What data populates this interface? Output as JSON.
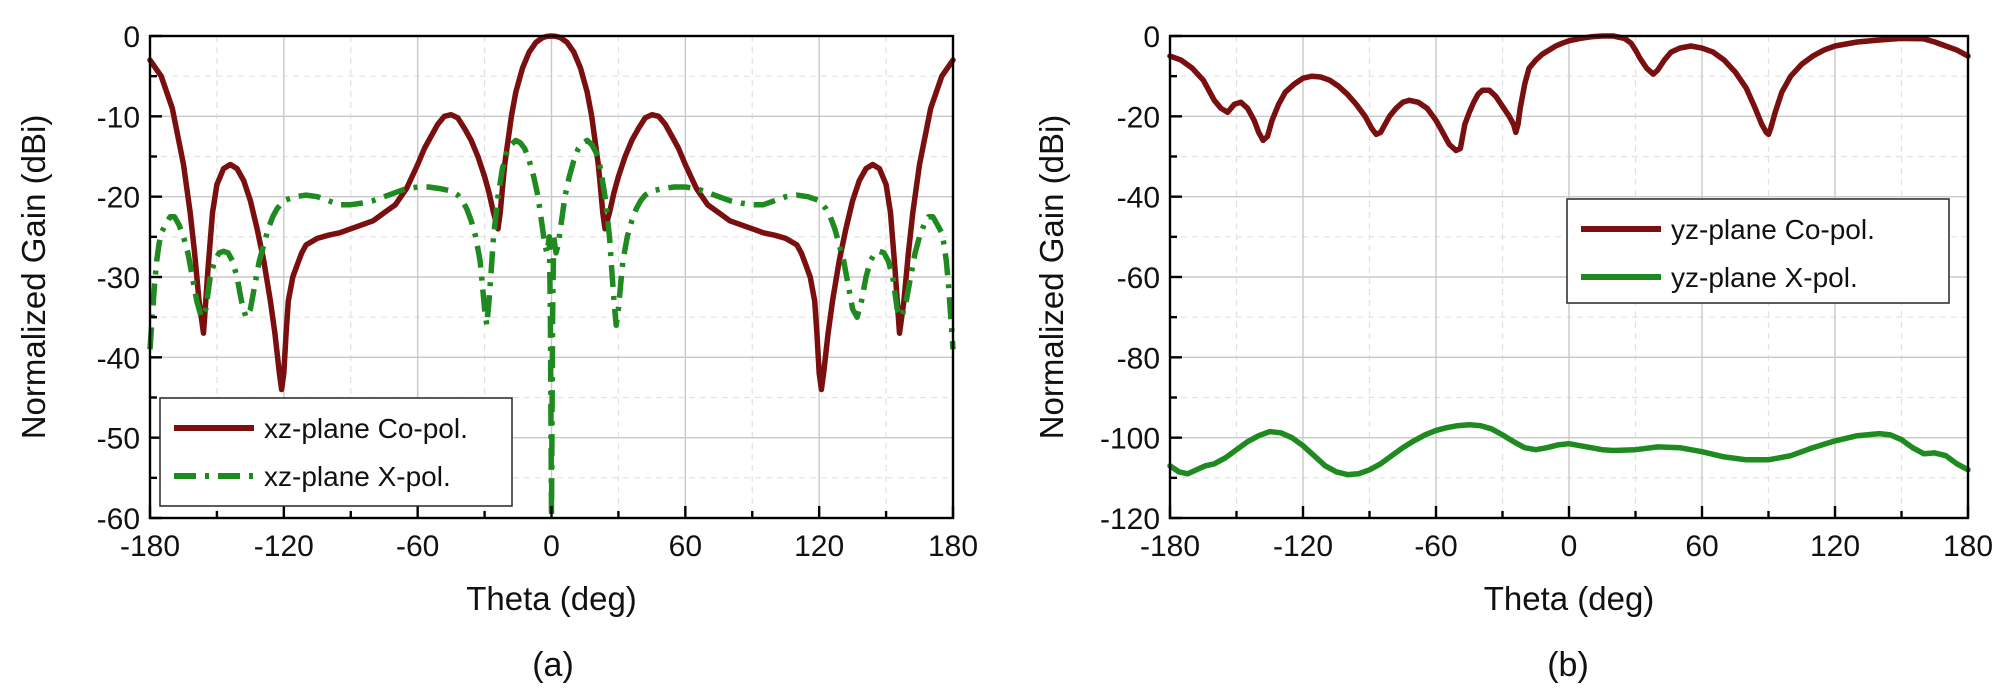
{
  "colors": {
    "co_pol": "#7a0f0f",
    "x_pol": "#1f8a1f",
    "grid": "#c9c9c9"
  },
  "chart_data": [
    {
      "type": "line",
      "caption": "(a)",
      "xlabel": "Theta (deg)",
      "ylabel": "Normalized Gain (dBi)",
      "xlim": [
        -180,
        180
      ],
      "ylim": [
        -60,
        0
      ],
      "xticks": [
        -180,
        -120,
        -60,
        0,
        60,
        120,
        180
      ],
      "yticks": [
        -60,
        -50,
        -40,
        -30,
        -20,
        -10,
        0
      ],
      "grid": true,
      "legend_position": "bottom-left",
      "series": [
        {
          "name": "xz-plane Co-pol.",
          "style": "solid",
          "color": "#7a0f0f",
          "x": [
            -180,
            -175,
            -170,
            -165,
            -162,
            -160,
            -158,
            -156,
            -154,
            -152,
            -150,
            -147,
            -144,
            -141,
            -138,
            -135,
            -132,
            -129,
            -126,
            -124,
            -122,
            -121,
            -120,
            -119,
            -118,
            -116,
            -114,
            -112,
            -110,
            -105,
            -100,
            -95,
            -90,
            -85,
            -80,
            -75,
            -70,
            -65,
            -60,
            -57,
            -54,
            -51,
            -48,
            -45,
            -42,
            -39,
            -36,
            -33,
            -30,
            -28,
            -26,
            -25,
            -24,
            -23,
            -22,
            -21,
            -20,
            -18,
            -16,
            -13,
            -10,
            -7,
            -4,
            -2,
            0,
            2,
            4,
            7,
            10,
            13,
            16,
            18,
            20,
            21,
            22,
            23,
            24,
            25,
            26,
            28,
            30,
            33,
            36,
            39,
            42,
            45,
            48,
            51,
            54,
            57,
            60,
            65,
            70,
            75,
            80,
            85,
            90,
            95,
            100,
            105,
            110,
            112,
            114,
            116,
            118,
            119,
            120,
            121,
            122,
            124,
            126,
            129,
            132,
            135,
            138,
            141,
            144,
            147,
            150,
            152,
            154,
            156,
            158,
            160,
            162,
            165,
            170,
            175,
            180
          ],
          "y": [
            -3,
            -5,
            -9,
            -16,
            -22,
            -27,
            -33,
            -37,
            -29,
            -22,
            -18.5,
            -16.5,
            -16,
            -16.5,
            -18,
            -20.5,
            -24,
            -28,
            -33,
            -37,
            -42,
            -44,
            -42,
            -37,
            -33,
            -30,
            -28.5,
            -27,
            -26,
            -25.2,
            -24.8,
            -24.5,
            -24,
            -23.5,
            -23,
            -22,
            -21,
            -19,
            -16,
            -14,
            -12.5,
            -11,
            -10,
            -9.8,
            -10.2,
            -11.5,
            -13,
            -15,
            -17.5,
            -19.5,
            -22,
            -23,
            -24,
            -22,
            -19,
            -16,
            -14,
            -10,
            -7,
            -4,
            -2,
            -0.8,
            -0.2,
            -0.05,
            0,
            -0.05,
            -0.2,
            -0.8,
            -2,
            -4,
            -7,
            -10,
            -14,
            -16,
            -19,
            -22,
            -24,
            -23,
            -22,
            -19.5,
            -17.5,
            -15,
            -13,
            -11.5,
            -10.2,
            -9.8,
            -10,
            -11,
            -12.5,
            -14,
            -16,
            -19,
            -21,
            -22,
            -23,
            -23.5,
            -24,
            -24.5,
            -24.8,
            -25.2,
            -26,
            -27,
            -28.5,
            -30,
            -33,
            -37,
            -42,
            -44,
            -42,
            -37,
            -33,
            -28,
            -24,
            -20.5,
            -18,
            -16.5,
            -16,
            -16.5,
            -18.5,
            -22,
            -29,
            -37,
            -33,
            -27,
            -22,
            -16,
            -9,
            -5,
            -3
          ]
        },
        {
          "name": "xz-plane X-pol.",
          "style": "dashdot",
          "color": "#1f8a1f",
          "x": [
            -180,
            -179,
            -178,
            -177,
            -176,
            -175,
            -173,
            -171,
            -169,
            -167,
            -165,
            -163,
            -161,
            -159,
            -157,
            -155,
            -153,
            -151,
            -149,
            -147,
            -145,
            -143,
            -141,
            -139,
            -137,
            -135,
            -133,
            -131,
            -129,
            -127,
            -125,
            -123,
            -120,
            -115,
            -110,
            -105,
            -100,
            -95,
            -90,
            -85,
            -80,
            -75,
            -70,
            -65,
            -60,
            -55,
            -50,
            -45,
            -42,
            -40,
            -38,
            -36,
            -34,
            -32,
            -31,
            -30,
            -29,
            -28,
            -27,
            -26,
            -24,
            -22,
            -20,
            -18,
            -16,
            -14,
            -12,
            -10,
            -8,
            -6,
            -5,
            -4,
            -3,
            -2,
            -1,
            -0.5,
            0,
            0.5,
            1,
            2,
            3,
            4,
            5,
            6,
            8,
            10,
            12,
            14,
            16,
            18,
            20,
            22,
            24,
            26,
            27,
            28,
            29,
            30,
            31,
            32,
            34,
            36,
            38,
            40,
            42,
            45,
            50,
            55,
            60,
            65,
            70,
            75,
            80,
            85,
            90,
            95,
            100,
            105,
            110,
            115,
            120,
            123,
            125,
            127,
            129,
            131,
            133,
            135,
            137,
            139,
            141,
            143,
            145,
            147,
            149,
            151,
            153,
            155,
            157,
            159,
            161,
            163,
            165,
            167,
            169,
            171,
            173,
            175,
            176,
            177,
            178,
            179,
            180
          ],
          "y": [
            -39,
            -35,
            -31,
            -28,
            -26,
            -24.5,
            -23.5,
            -22.5,
            -22.5,
            -23.5,
            -25,
            -27,
            -30,
            -33,
            -35,
            -34,
            -30,
            -28,
            -27,
            -26.8,
            -27,
            -28,
            -30,
            -33,
            -35,
            -34,
            -31,
            -28,
            -26,
            -24,
            -22.5,
            -21.5,
            -20.5,
            -20,
            -19.8,
            -20,
            -20.5,
            -21,
            -21,
            -20.8,
            -20.5,
            -20,
            -19.5,
            -19,
            -18.8,
            -18.8,
            -19,
            -19.3,
            -19.8,
            -20.5,
            -21.5,
            -23,
            -25,
            -28,
            -31,
            -34,
            -36,
            -33,
            -29,
            -25,
            -20,
            -16.5,
            -14.5,
            -13.5,
            -13,
            -13.3,
            -14,
            -15.5,
            -17.5,
            -20,
            -22,
            -24,
            -26,
            -27,
            -25,
            -35,
            -60,
            -35,
            -25,
            -27,
            -26,
            -24,
            -22,
            -20,
            -17.5,
            -15.5,
            -14,
            -13.3,
            -13,
            -13.5,
            -14.5,
            -16.5,
            -20,
            -25,
            -29,
            -33,
            -36,
            -34,
            -31,
            -28,
            -25,
            -23,
            -21.5,
            -20.5,
            -19.8,
            -19.3,
            -19,
            -18.8,
            -18.8,
            -19,
            -19.5,
            -20,
            -20.5,
            -20.8,
            -21,
            -21,
            -20.5,
            -20,
            -19.8,
            -20,
            -20.5,
            -21.5,
            -22.5,
            -24,
            -26,
            -28,
            -31,
            -34,
            -35,
            -33,
            -30,
            -28,
            -27,
            -26.8,
            -27,
            -28,
            -30,
            -34,
            -35,
            -33,
            -30,
            -27,
            -25,
            -23.5,
            -22.5,
            -22.5,
            -23.5,
            -24.5,
            -26,
            -28,
            -31,
            -35,
            -39
          ]
        }
      ]
    },
    {
      "type": "line",
      "caption": "(b)",
      "xlabel": "Theta (deg)",
      "ylabel": "Normalized Gain (dBi)",
      "xlim": [
        -180,
        180
      ],
      "ylim": [
        -120,
        0
      ],
      "xticks": [
        -180,
        -120,
        -60,
        0,
        60,
        120,
        180
      ],
      "yticks": [
        -120,
        -100,
        -80,
        -60,
        -40,
        -20,
        0
      ],
      "grid": true,
      "legend_position": "center-right",
      "series": [
        {
          "name": "yz-plane Co-pol.",
          "style": "solid",
          "color": "#7a0f0f",
          "x": [
            -180,
            -175,
            -170,
            -165,
            -160,
            -157,
            -154,
            -151,
            -148,
            -145,
            -142,
            -140,
            -138,
            -136,
            -134,
            -131,
            -128,
            -124,
            -120,
            -116,
            -112,
            -108,
            -104,
            -100,
            -96,
            -92,
            -89,
            -87,
            -85,
            -83,
            -81,
            -78,
            -75,
            -72,
            -68,
            -64,
            -60,
            -57,
            -54,
            -51,
            -49,
            -48,
            -47,
            -45,
            -43,
            -41,
            -39,
            -36,
            -33,
            -30,
            -27,
            -25,
            -24,
            -23,
            -22,
            -20,
            -18,
            -15,
            -12,
            -9,
            -6,
            -3,
            0,
            5,
            10,
            15,
            20,
            25,
            28,
            30,
            32,
            35,
            38,
            40,
            43,
            46,
            50,
            55,
            60,
            65,
            70,
            75,
            80,
            84,
            87,
            89,
            90,
            91,
            93,
            96,
            100,
            105,
            110,
            115,
            120,
            130,
            140,
            150,
            160,
            165,
            170,
            175,
            180
          ],
          "y": [
            -5,
            -6,
            -8,
            -11,
            -16,
            -18,
            -19,
            -17,
            -16.5,
            -18,
            -21,
            -24,
            -26,
            -25,
            -21,
            -17,
            -14,
            -12,
            -10.5,
            -10,
            -10.2,
            -11,
            -12.5,
            -14.5,
            -17,
            -20,
            -23,
            -24.5,
            -24,
            -22,
            -20,
            -18,
            -16.5,
            -16,
            -16.5,
            -18,
            -21,
            -24,
            -27,
            -28.5,
            -28,
            -25,
            -22,
            -19,
            -16.5,
            -14.5,
            -13.5,
            -13.5,
            -15,
            -17.5,
            -20,
            -22,
            -24,
            -22,
            -18,
            -12,
            -8,
            -6,
            -4.5,
            -3.5,
            -2.5,
            -1.8,
            -1.2,
            -0.6,
            -0.2,
            0,
            0,
            -0.6,
            -1.8,
            -3.5,
            -5.5,
            -8,
            -9.5,
            -8.5,
            -6,
            -4,
            -3,
            -2.5,
            -3,
            -4,
            -6,
            -9,
            -13,
            -18,
            -22,
            -24,
            -24.5,
            -23,
            -19,
            -14,
            -10,
            -7,
            -5,
            -3.5,
            -2.5,
            -1.5,
            -1,
            -0.6,
            -0.7,
            -1.5,
            -2.5,
            -3.5,
            -5
          ]
        },
        {
          "name": "yz-plane X-pol.",
          "style": "solid",
          "color": "#1f8a1f",
          "x": [
            -180,
            -176,
            -172,
            -168,
            -164,
            -160,
            -155,
            -150,
            -145,
            -140,
            -135,
            -130,
            -125,
            -120,
            -115,
            -110,
            -105,
            -100,
            -95,
            -90,
            -85,
            -80,
            -75,
            -70,
            -65,
            -60,
            -55,
            -50,
            -45,
            -40,
            -35,
            -30,
            -25,
            -20,
            -15,
            -10,
            -5,
            0,
            5,
            10,
            15,
            20,
            30,
            40,
            50,
            60,
            70,
            80,
            90,
            100,
            110,
            120,
            130,
            140,
            145,
            150,
            155,
            160,
            165,
            170,
            175,
            180
          ],
          "y": [
            -107,
            -108.5,
            -109,
            -108,
            -107,
            -106.5,
            -105,
            -103,
            -101,
            -99.5,
            -98.5,
            -98.8,
            -100,
            -102,
            -104.5,
            -107,
            -108.5,
            -109.2,
            -109,
            -108,
            -106.5,
            -104.5,
            -102.5,
            -100.8,
            -99.3,
            -98.2,
            -97.5,
            -97,
            -96.8,
            -97,
            -97.8,
            -99.3,
            -101,
            -102.5,
            -103,
            -102.5,
            -101.8,
            -101.5,
            -102,
            -102.5,
            -103,
            -103.2,
            -103,
            -102.3,
            -102.5,
            -103.5,
            -104.8,
            -105.5,
            -105.5,
            -104.5,
            -102.5,
            -100.8,
            -99.5,
            -99,
            -99.3,
            -100.5,
            -102.5,
            -104,
            -103.8,
            -104.5,
            -106.5,
            -108
          ]
        }
      ]
    }
  ]
}
